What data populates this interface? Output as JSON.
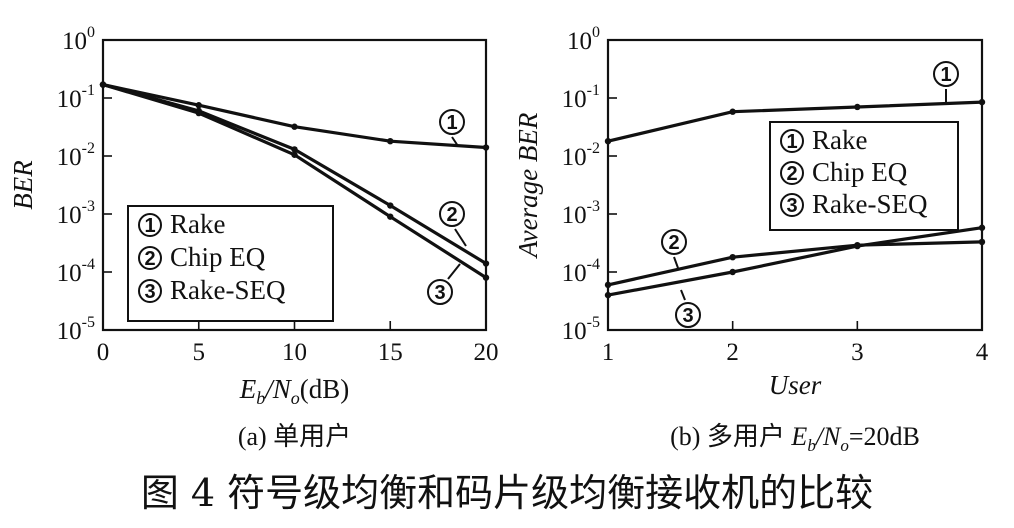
{
  "figure_caption": "图 4   符号级均衡和码片级均衡接收机的比较",
  "chart_data": [
    {
      "type": "line",
      "subtitle": "(a)  单用户",
      "xlabel": "Eb/No(dB)",
      "ylabel": "BER",
      "yscale": "log",
      "xlim": [
        0,
        20
      ],
      "ylim": [
        1e-05,
        1
      ],
      "x_ticks": [
        0,
        5,
        10,
        15,
        20
      ],
      "y_ticks": [
        1,
        0.1,
        0.01,
        0.001,
        0.0001,
        1e-05
      ],
      "y_tick_labels": [
        [
          "10",
          "0"
        ],
        [
          "10",
          "-1"
        ],
        [
          "10",
          "-2"
        ],
        [
          "10",
          "-3"
        ],
        [
          "10",
          "-4"
        ],
        [
          "10",
          "-5"
        ]
      ],
      "legend": {
        "position": "lower-left",
        "items": [
          {
            "num": "1",
            "label": "Rake"
          },
          {
            "num": "2",
            "label": "Chip EQ"
          },
          {
            "num": "3",
            "label": "Rake-SEQ"
          }
        ]
      },
      "series": [
        {
          "name": "Rake",
          "num": "1",
          "x": [
            0,
            5,
            10,
            15,
            20
          ],
          "y": [
            0.17,
            0.075,
            0.032,
            0.018,
            0.014
          ]
        },
        {
          "name": "Chip EQ",
          "num": "2",
          "x": [
            0,
            5,
            10,
            15,
            20
          ],
          "y": [
            0.17,
            0.06,
            0.013,
            0.0014,
            0.00014
          ]
        },
        {
          "name": "Rake-SEQ",
          "num": "3",
          "x": [
            0,
            5,
            10,
            15,
            20
          ],
          "y": [
            0.17,
            0.055,
            0.0105,
            0.0009,
            8e-05
          ]
        }
      ],
      "callouts": [
        {
          "num": "1",
          "series": "Rake"
        },
        {
          "num": "2",
          "series": "Chip EQ"
        },
        {
          "num": "3",
          "series": "Rake-SEQ"
        }
      ]
    },
    {
      "type": "line",
      "subtitle": "(b)  多用户 Eb/No=20dB",
      "xlabel": "User",
      "ylabel": "Average BER",
      "yscale": "log",
      "xlim": [
        1,
        4
      ],
      "ylim": [
        1e-05,
        1
      ],
      "x_ticks": [
        1,
        2,
        3,
        4
      ],
      "y_ticks": [
        1,
        0.1,
        0.01,
        0.001,
        0.0001,
        1e-05
      ],
      "y_tick_labels": [
        [
          "10",
          "0"
        ],
        [
          "10",
          "-1"
        ],
        [
          "10",
          "-2"
        ],
        [
          "10",
          "-3"
        ],
        [
          "10",
          "-4"
        ],
        [
          "10",
          "-5"
        ]
      ],
      "legend": {
        "position": "upper-right",
        "items": [
          {
            "num": "1",
            "label": "Rake"
          },
          {
            "num": "2",
            "label": "Chip EQ"
          },
          {
            "num": "3",
            "label": "Rake-SEQ"
          }
        ]
      },
      "series": [
        {
          "name": "Rake",
          "num": "1",
          "x": [
            1,
            2,
            3,
            4
          ],
          "y": [
            0.018,
            0.058,
            0.07,
            0.085
          ]
        },
        {
          "name": "Chip EQ",
          "num": "2",
          "x": [
            1,
            2,
            3,
            4
          ],
          "y": [
            6e-05,
            0.00018,
            0.00029,
            0.00033
          ]
        },
        {
          "name": "Rake-SEQ",
          "num": "3",
          "x": [
            1,
            2,
            3,
            4
          ],
          "y": [
            4e-05,
            0.0001,
            0.00028,
            0.00058
          ]
        }
      ],
      "callouts": [
        {
          "num": "1",
          "series": "Rake"
        },
        {
          "num": "2",
          "series": "Chip EQ"
        },
        {
          "num": "3",
          "series": "Rake-SEQ"
        }
      ]
    }
  ]
}
